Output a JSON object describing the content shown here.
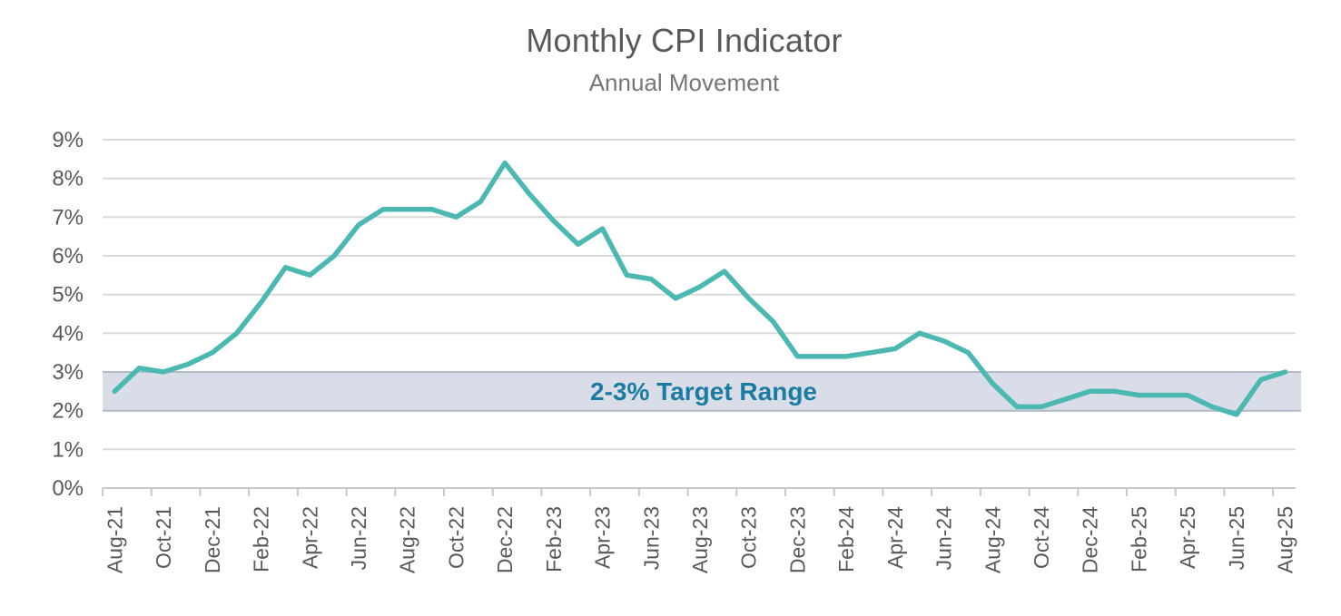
{
  "title": "Monthly CPI Indicator",
  "subtitle": "Annual Movement",
  "target_band": {
    "label": "2-3% Target Range",
    "from_pct": 2,
    "to_pct": 3
  },
  "colors": {
    "line": "#4cb8b2",
    "gridline": "#dadada",
    "axis_line": "#c8c8c8",
    "tick_label": "#595959",
    "title": "#595959",
    "subtitle": "#767676",
    "band_fill": "#d9dde8",
    "band_border": "#b3bac8",
    "band_label": "#1a7ba3"
  },
  "chart_data": {
    "type": "line",
    "title": "Monthly CPI Indicator",
    "subtitle": "Annual Movement",
    "x": [
      "Aug-21",
      "Sep-21",
      "Oct-21",
      "Nov-21",
      "Dec-21",
      "Jan-22",
      "Feb-22",
      "Mar-22",
      "Apr-22",
      "May-22",
      "Jun-22",
      "Jul-22",
      "Aug-22",
      "Sep-22",
      "Oct-22",
      "Nov-22",
      "Dec-22",
      "Jan-23",
      "Feb-23",
      "Mar-23",
      "Apr-23",
      "May-23",
      "Jun-23",
      "Jul-23",
      "Aug-23",
      "Sep-23",
      "Oct-23",
      "Nov-23",
      "Dec-23",
      "Jan-24",
      "Feb-24",
      "Mar-24",
      "Apr-24",
      "May-24",
      "Jun-24",
      "Jul-24",
      "Aug-24",
      "Sep-24",
      "Oct-24",
      "Nov-24",
      "Dec-24",
      "Jan-25",
      "Feb-25",
      "Mar-25",
      "Apr-25",
      "May-25",
      "Jun-25",
      "Jul-25",
      "Aug-25"
    ],
    "series": [
      {
        "name": "Monthly CPI Indicator annual movement (%)",
        "values": [
          2.5,
          3.1,
          3.0,
          3.2,
          3.5,
          4.0,
          4.8,
          5.7,
          5.5,
          6.0,
          6.8,
          7.2,
          7.2,
          7.2,
          7.0,
          7.4,
          8.4,
          7.6,
          6.9,
          6.3,
          6.7,
          5.5,
          5.4,
          4.9,
          5.2,
          5.6,
          4.9,
          4.3,
          3.4,
          3.4,
          3.4,
          3.5,
          3.6,
          4.0,
          3.8,
          3.5,
          2.7,
          2.1,
          2.1,
          2.3,
          2.5,
          2.5,
          2.4,
          2.4,
          2.4,
          2.1,
          1.9,
          2.8,
          3.0
        ]
      }
    ],
    "ylim": [
      0,
      9
    ],
    "y_tick_labels": [
      "0%",
      "1%",
      "2%",
      "3%",
      "4%",
      "5%",
      "6%",
      "7%",
      "8%",
      "9%"
    ],
    "x_tick_labels": [
      "Aug-21",
      "Oct-21",
      "Dec-21",
      "Feb-22",
      "Apr-22",
      "Jun-22",
      "Aug-22",
      "Oct-22",
      "Dec-22",
      "Feb-23",
      "Apr-23",
      "Jun-23",
      "Aug-23",
      "Oct-23",
      "Dec-23",
      "Feb-24",
      "Apr-24",
      "Jun-24",
      "Aug-24",
      "Oct-24",
      "Dec-24",
      "Feb-25",
      "Apr-25",
      "Jun-25",
      "Aug-25"
    ],
    "x_label_every": 2,
    "grid": true,
    "legend": false,
    "annotation_band": {
      "from": 2,
      "to": 3,
      "label": "2-3% Target Range"
    }
  }
}
